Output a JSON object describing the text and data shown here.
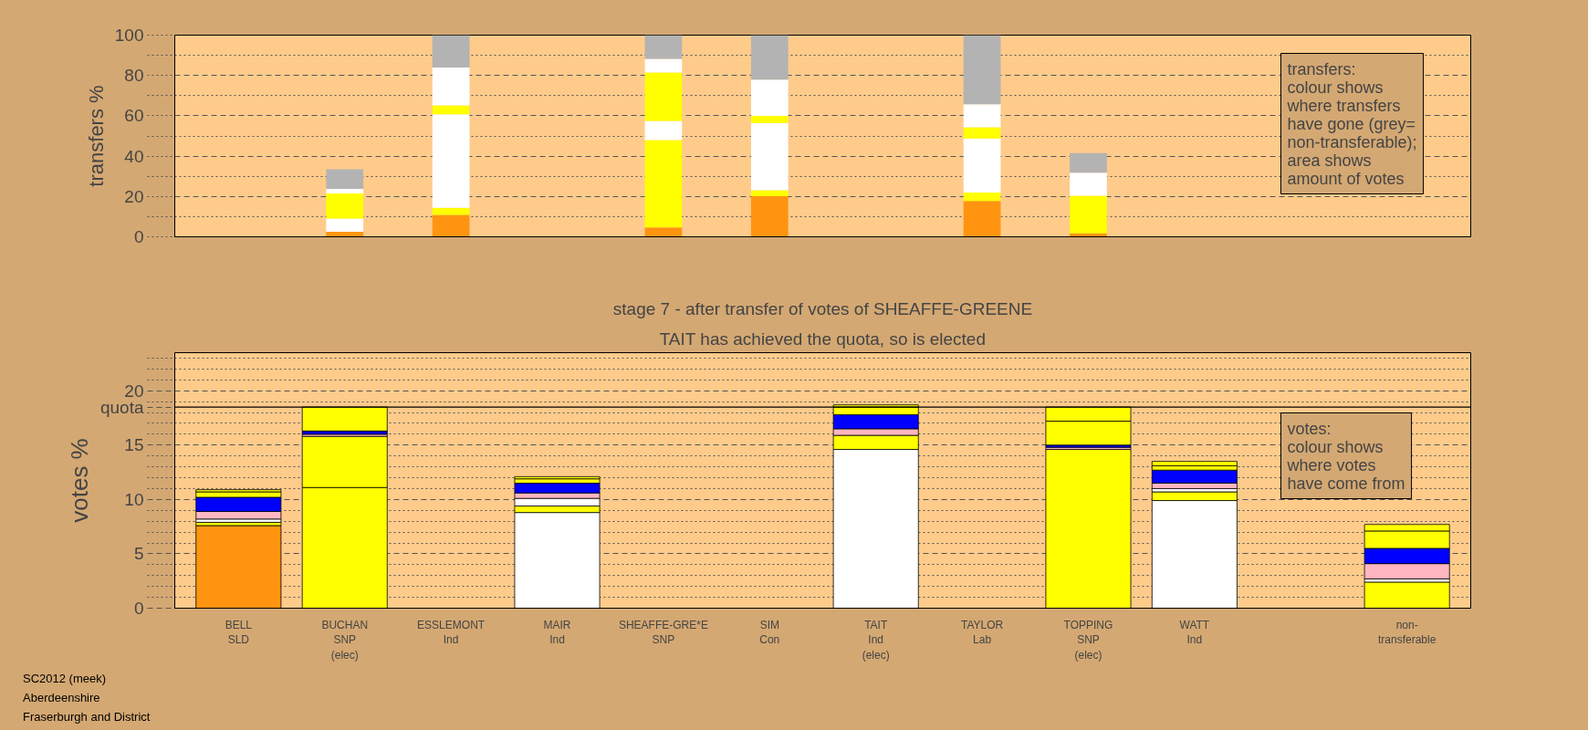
{
  "chart_data": [
    {
      "type": "bar",
      "stacked": true,
      "tick_labels": "y",
      "categories": [
        null,
        null,
        null,
        null,
        null,
        null,
        null,
        null,
        null,
        null,
        null,
        null
      ],
      "ylabel": "transfers %",
      "ylim": [
        0,
        100
      ],
      "yticks": [
        0,
        {
          "value": 10,
          "label": null
        },
        20,
        {
          "value": 30,
          "label": null
        },
        40,
        {
          "value": 50,
          "label": null
        },
        60,
        {
          "value": 70,
          "label": null
        },
        80,
        {
          "value": 90,
          "label": null
        },
        100
      ],
      "grid": "y",
      "annotations": [
        "transfers:\ncolour shows\nwhere transfers\nhave gone (grey=\nnon-transferable);\narea shows\namount of votes"
      ],
      "series": [
        {
          "color": "#ff9411",
          "values": [
            null,
            2.5,
            10.9,
            null,
            4.6,
            20.1,
            null,
            17.8,
            1.7,
            null,
            null,
            null
          ]
        },
        {
          "color": "#ffffff",
          "values": [
            null,
            6.5,
            null,
            null,
            null,
            null,
            null,
            null,
            null,
            null,
            null,
            null
          ]
        },
        {
          "color": "#ffff00",
          "values": [
            null,
            12.5,
            3.5,
            null,
            43.4,
            3.0,
            null,
            4.2,
            18.7,
            null,
            null,
            null
          ]
        },
        {
          "color": "#ffffff",
          "values": [
            null,
            2.3,
            46.4,
            null,
            9.5,
            33.3,
            null,
            26.7,
            11.4,
            null,
            null,
            null
          ]
        },
        {
          "color": "#ffff00",
          "values": [
            null,
            null,
            4.4,
            null,
            24.0,
            3.5,
            null,
            5.6,
            null,
            null,
            null,
            null
          ]
        },
        {
          "color": "#ffffff",
          "values": [
            null,
            null,
            18.7,
            null,
            6.7,
            18.0,
            null,
            11.4,
            null,
            null,
            null,
            null
          ]
        },
        {
          "color": "#b3b3b3",
          "values": [
            null,
            9.7,
            16.1,
            null,
            11.8,
            22.1,
            null,
            34.3,
            9.7,
            null,
            null,
            null
          ]
        }
      ]
    },
    {
      "type": "bar",
      "stacked": true,
      "title": "stage 7 - after transfer of votes of SHEAFFE-GREENE",
      "subtitle": "TAIT has achieved the quota, so is elected",
      "categories": [
        "BELL\nSLD",
        "BUCHAN\nSNP\n(elec)",
        "ESSLEMONT\nInd",
        "MAIR\nInd",
        "SHEAFFE-GRE*E\nSNP",
        "SIM\nCon",
        "TAIT\nInd\n(elec)",
        "TAYLOR\nLab",
        "TOPPING\nSNP\n(elec)",
        "WATT\nInd",
        null,
        "non-\ntransferable"
      ],
      "ylabel": "votes %",
      "ylim": [
        0,
        23.5
      ],
      "yticks": [
        0,
        {
          "value": 1,
          "label": null
        },
        {
          "value": 2,
          "label": null
        },
        {
          "value": 3,
          "label": null
        },
        {
          "value": 4,
          "label": null
        },
        5,
        {
          "value": 6,
          "label": null
        },
        {
          "value": 7,
          "label": null
        },
        {
          "value": 8,
          "label": null
        },
        {
          "value": 9,
          "label": null
        },
        10,
        {
          "value": 11,
          "label": null
        },
        {
          "value": 12,
          "label": null
        },
        {
          "value": 13,
          "label": null
        },
        {
          "value": 14,
          "label": null
        },
        15,
        {
          "value": 16,
          "label": null
        },
        {
          "value": 17,
          "label": null
        },
        {
          "value": 18,
          "label": null
        },
        {
          "value": 19,
          "label": null
        },
        20,
        {
          "value": 21,
          "label": null
        },
        {
          "value": 22,
          "label": null
        },
        {
          "value": 23,
          "label": null
        }
      ],
      "grid": "y",
      "ref_lines": [
        {
          "axis": "y",
          "value": 18.5,
          "label": "quota"
        }
      ],
      "annotations": [
        "votes:\ncolour shows\nwhere votes\nhave come from",
        "SC2012 (meek)",
        "Aberdeenshire",
        "Fraserburgh and District"
      ],
      "series": [
        {
          "color": "#ff9411",
          "values": [
            7.6,
            null,
            null,
            null,
            null,
            null,
            null,
            null,
            null,
            null,
            null,
            null
          ]
        },
        {
          "color": "#ffff00",
          "values": [
            null,
            11.1,
            null,
            null,
            null,
            null,
            null,
            null,
            14.6,
            null,
            null,
            null
          ]
        },
        {
          "color": "#ffffff",
          "values": [
            null,
            null,
            null,
            8.8,
            null,
            null,
            14.6,
            null,
            null,
            9.9,
            null,
            null
          ]
        },
        {
          "color": "#ffff00",
          "values": [
            0.3,
            4.7,
            null,
            0.6,
            null,
            null,
            1.3,
            null,
            null,
            0.8,
            null,
            2.4
          ]
        },
        {
          "color": "#ffffff",
          "values": [
            0.3,
            null,
            null,
            0.7,
            null,
            null,
            null,
            null,
            null,
            0.3,
            null,
            0.3
          ]
        },
        {
          "color": "#ffb6c1",
          "values": [
            0.7,
            0.2,
            null,
            0.5,
            null,
            null,
            0.6,
            null,
            0.2,
            0.5,
            null,
            1.4
          ]
        },
        {
          "color": "#0000ff",
          "values": [
            1.3,
            0.3,
            null,
            0.9,
            null,
            null,
            1.3,
            null,
            0.2,
            1.2,
            null,
            1.4
          ]
        },
        {
          "color": "#ffff00",
          "values": [
            0.5,
            2.2,
            null,
            0.4,
            null,
            null,
            0.7,
            null,
            2.2,
            0.4,
            null,
            1.6
          ]
        },
        {
          "color": "#ffff00",
          "values": [
            0.2,
            null,
            null,
            0.2,
            null,
            null,
            0.2,
            null,
            1.3,
            0.4,
            null,
            0.6
          ]
        }
      ]
    }
  ]
}
